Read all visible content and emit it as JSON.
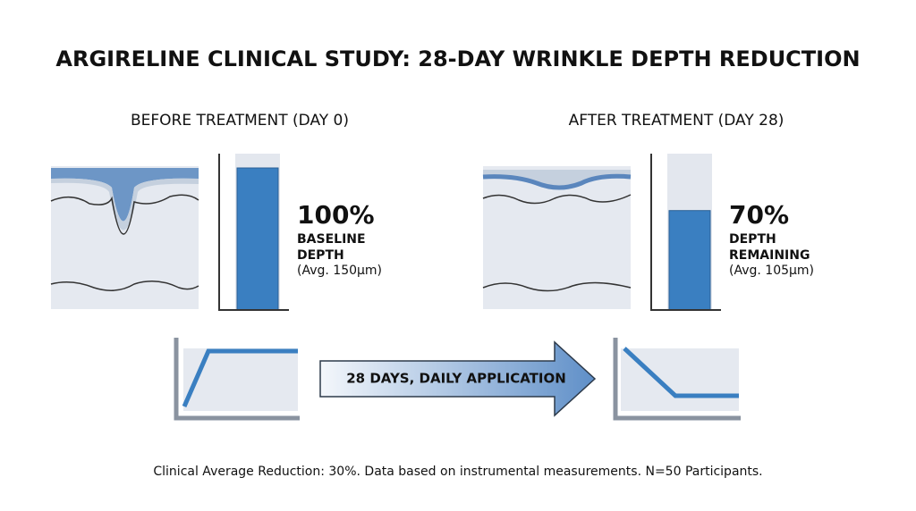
{
  "title": "ARGIRELINE CLINICAL STUDY: 28-DAY WRINKLE DEPTH REDUCTION",
  "ylim": [
    0,
    100
  ],
  "panels": [
    {
      "heading": "BEFORE TREATMENT (DAY 0)",
      "value": 100,
      "value_label": "100%",
      "caption": [
        "BASELINE",
        "DEPTH"
      ],
      "note": "(Avg. 150μm)"
    },
    {
      "heading": "AFTER TREATMENT (DAY 28)",
      "value": 70,
      "value_label": "70%",
      "caption": [
        "DEPTH",
        "REMAINING"
      ],
      "note": "(Avg. 105μm)"
    }
  ],
  "arrow_label": "28 DAYS, DAILY APPLICATION",
  "footnote": "Clinical Average Reduction: 30%. Data based on instrumental measurements. N=50 Participants."
}
